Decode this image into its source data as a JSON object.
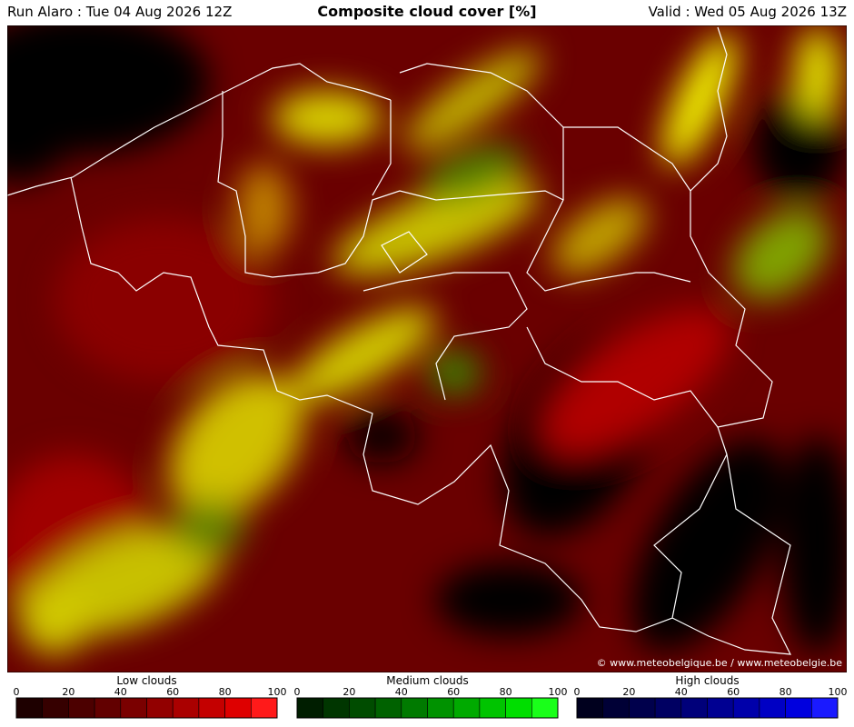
{
  "header": {
    "run": "Run Alaro : Tue 04 Aug 2026 12Z",
    "title": "Composite cloud cover [%]",
    "valid": "Valid : Wed 05 Aug 2026 13Z"
  },
  "map": {
    "credit": "© www.meteobelgique.be / www.meteobelgie.be"
  },
  "legends": [
    {
      "label": "Low clouds",
      "ticks": [
        0,
        20,
        40,
        60,
        80,
        100
      ],
      "colors": [
        "#1e0000",
        "#360000",
        "#4c0000",
        "#620000",
        "#7a0000",
        "#920000",
        "#aa0000",
        "#c40000",
        "#de0000",
        "#ff1a1a"
      ]
    },
    {
      "label": "Medium clouds",
      "ticks": [
        0,
        20,
        40,
        60,
        80,
        100
      ],
      "colors": [
        "#001e00",
        "#003600",
        "#004c00",
        "#006200",
        "#007a00",
        "#009200",
        "#00aa00",
        "#00c400",
        "#00de00",
        "#1aff1a"
      ]
    },
    {
      "label": "High clouds",
      "ticks": [
        0,
        20,
        40,
        60,
        80,
        100
      ],
      "colors": [
        "#00001e",
        "#000036",
        "#00004c",
        "#000062",
        "#00007a",
        "#000092",
        "#0000aa",
        "#0000c4",
        "#0000de",
        "#1a1aff"
      ]
    }
  ]
}
